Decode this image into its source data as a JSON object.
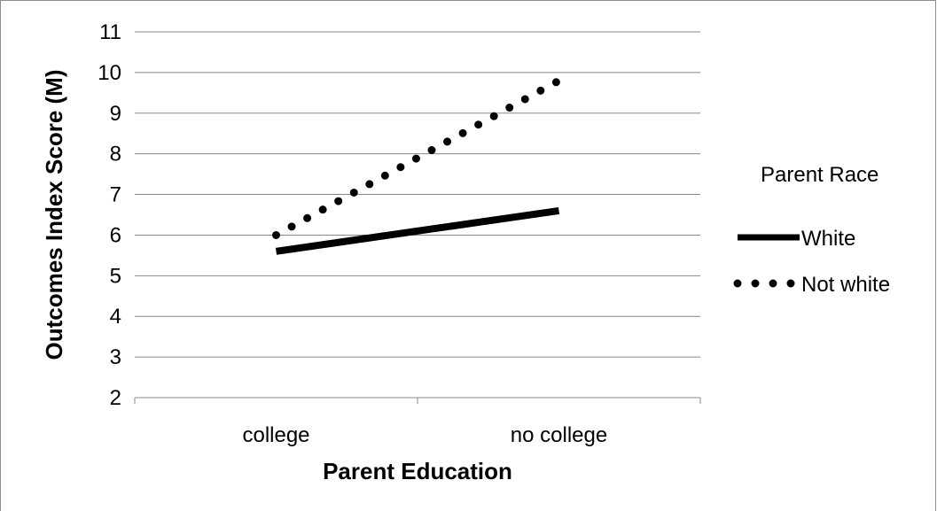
{
  "chart_data": {
    "type": "line",
    "categories": [
      "college",
      "no college"
    ],
    "series": [
      {
        "name": "White",
        "values": [
          5.6,
          6.6
        ],
        "style": "solid",
        "color": "#000000"
      },
      {
        "name": "Not white",
        "values": [
          6.0,
          9.8
        ],
        "style": "dotted",
        "color": "#000000"
      }
    ],
    "xlabel": "Parent Education",
    "ylabel": "Outcomes Index Score (M)",
    "ylim": [
      2,
      11
    ],
    "yticks": [
      "2",
      "3",
      "4",
      "5",
      "6",
      "7",
      "8",
      "9",
      "10",
      "11"
    ],
    "grid": "horizontal",
    "legend_title": "Parent Race",
    "legend_position": "right",
    "gridline_color": "#888888",
    "frame_color": "#8c8c8c"
  }
}
